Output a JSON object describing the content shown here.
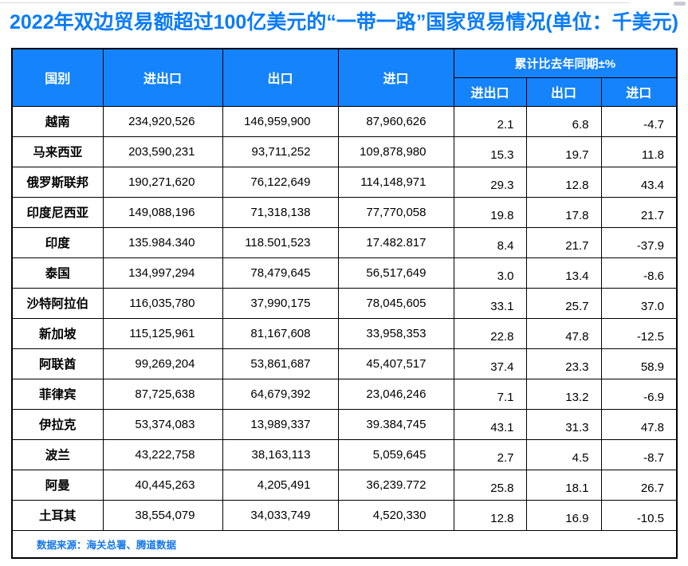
{
  "title": "2022年双边贸易额超过100亿美元的“一带一路”国家贸易情况(单位：千美元)",
  "colors": {
    "accent_blue": "#1583FB",
    "title_blue": "#0B7CF6",
    "footer_blue": "#1577E8",
    "border_black": "#000000"
  },
  "table": {
    "headers": {
      "country": "国别",
      "total": "进出口",
      "export": "出口",
      "import": "进口",
      "pct_group": "累计比去年同期±%",
      "pct_total": "进出口",
      "pct_export": "出口",
      "pct_import": "进口"
    },
    "rows": [
      {
        "country": "越南",
        "total": "234,920,526",
        "export": "146,959,900",
        "import": "87,960,626",
        "pct_total": "2.1",
        "pct_export": "6.8",
        "pct_import": "-4.7"
      },
      {
        "country": "马来西亚",
        "total": "203,590,231",
        "export": "93,711,252",
        "import": "109,878,980",
        "pct_total": "15.3",
        "pct_export": "19.7",
        "pct_import": "11.8"
      },
      {
        "country": "俄罗斯联邦",
        "total": "190,271,620",
        "export": "76,122,649",
        "import": "114,148,971",
        "pct_total": "29.3",
        "pct_export": "12.8",
        "pct_import": "43.4"
      },
      {
        "country": "印度尼西亚",
        "total": "149,088,196",
        "export": "71,318,138",
        "import": "77,770,058",
        "pct_total": "19.8",
        "pct_export": "17.8",
        "pct_import": "21.7"
      },
      {
        "country": "印度",
        "total": "135.984.340",
        "export": "118.501,523",
        "import": "17.482.817",
        "pct_total": "8.4",
        "pct_export": "21.7",
        "pct_import": "-37.9"
      },
      {
        "country": "泰国",
        "total": "134,997,294",
        "export": "78,479,645",
        "import": "56,517,649",
        "pct_total": "3.0",
        "pct_export": "13.4",
        "pct_import": "-8.6"
      },
      {
        "country": "沙特阿拉伯",
        "total": "116,035,780",
        "export": "37,990,175",
        "import": "78,045,605",
        "pct_total": "33.1",
        "pct_export": "25.7",
        "pct_import": "37.0"
      },
      {
        "country": "新加坡",
        "total": "115,125,961",
        "export": "81,167,608",
        "import": "33,958,353",
        "pct_total": "22.8",
        "pct_export": "47.8",
        "pct_import": "-12.5"
      },
      {
        "country": "阿联酋",
        "total": "99,269,204",
        "export": "53,861,687",
        "import": "45,407,517",
        "pct_total": "37.4",
        "pct_export": "23.3",
        "pct_import": "58.9"
      },
      {
        "country": "菲律宾",
        "total": "87,725,638",
        "export": "64,679,392",
        "import": "23,046,246",
        "pct_total": "7.1",
        "pct_export": "13.2",
        "pct_import": "-6.9"
      },
      {
        "country": "伊拉克",
        "total": "53,374,083",
        "export": "13,989,337",
        "import": "39.384,745",
        "pct_total": "43.1",
        "pct_export": "31.3",
        "pct_import": "47.8"
      },
      {
        "country": "波兰",
        "total": "43,222,758",
        "export": "38,163,113",
        "import": "5,059,645",
        "pct_total": "2.7",
        "pct_export": "4.5",
        "pct_import": "-8.7"
      },
      {
        "country": "阿曼",
        "total": "40,445,263",
        "export": "4,205,491",
        "import": "36,239.772",
        "pct_total": "25.8",
        "pct_export": "18.1",
        "pct_import": "26.7"
      },
      {
        "country": "土耳其",
        "total": "38,554,079",
        "export": "34,033,749",
        "import": "4,520,330",
        "pct_total": "12.8",
        "pct_export": "16.9",
        "pct_import": "-10.5"
      }
    ]
  },
  "footer": {
    "source": "数据来源：海关总署、腾道数据"
  }
}
